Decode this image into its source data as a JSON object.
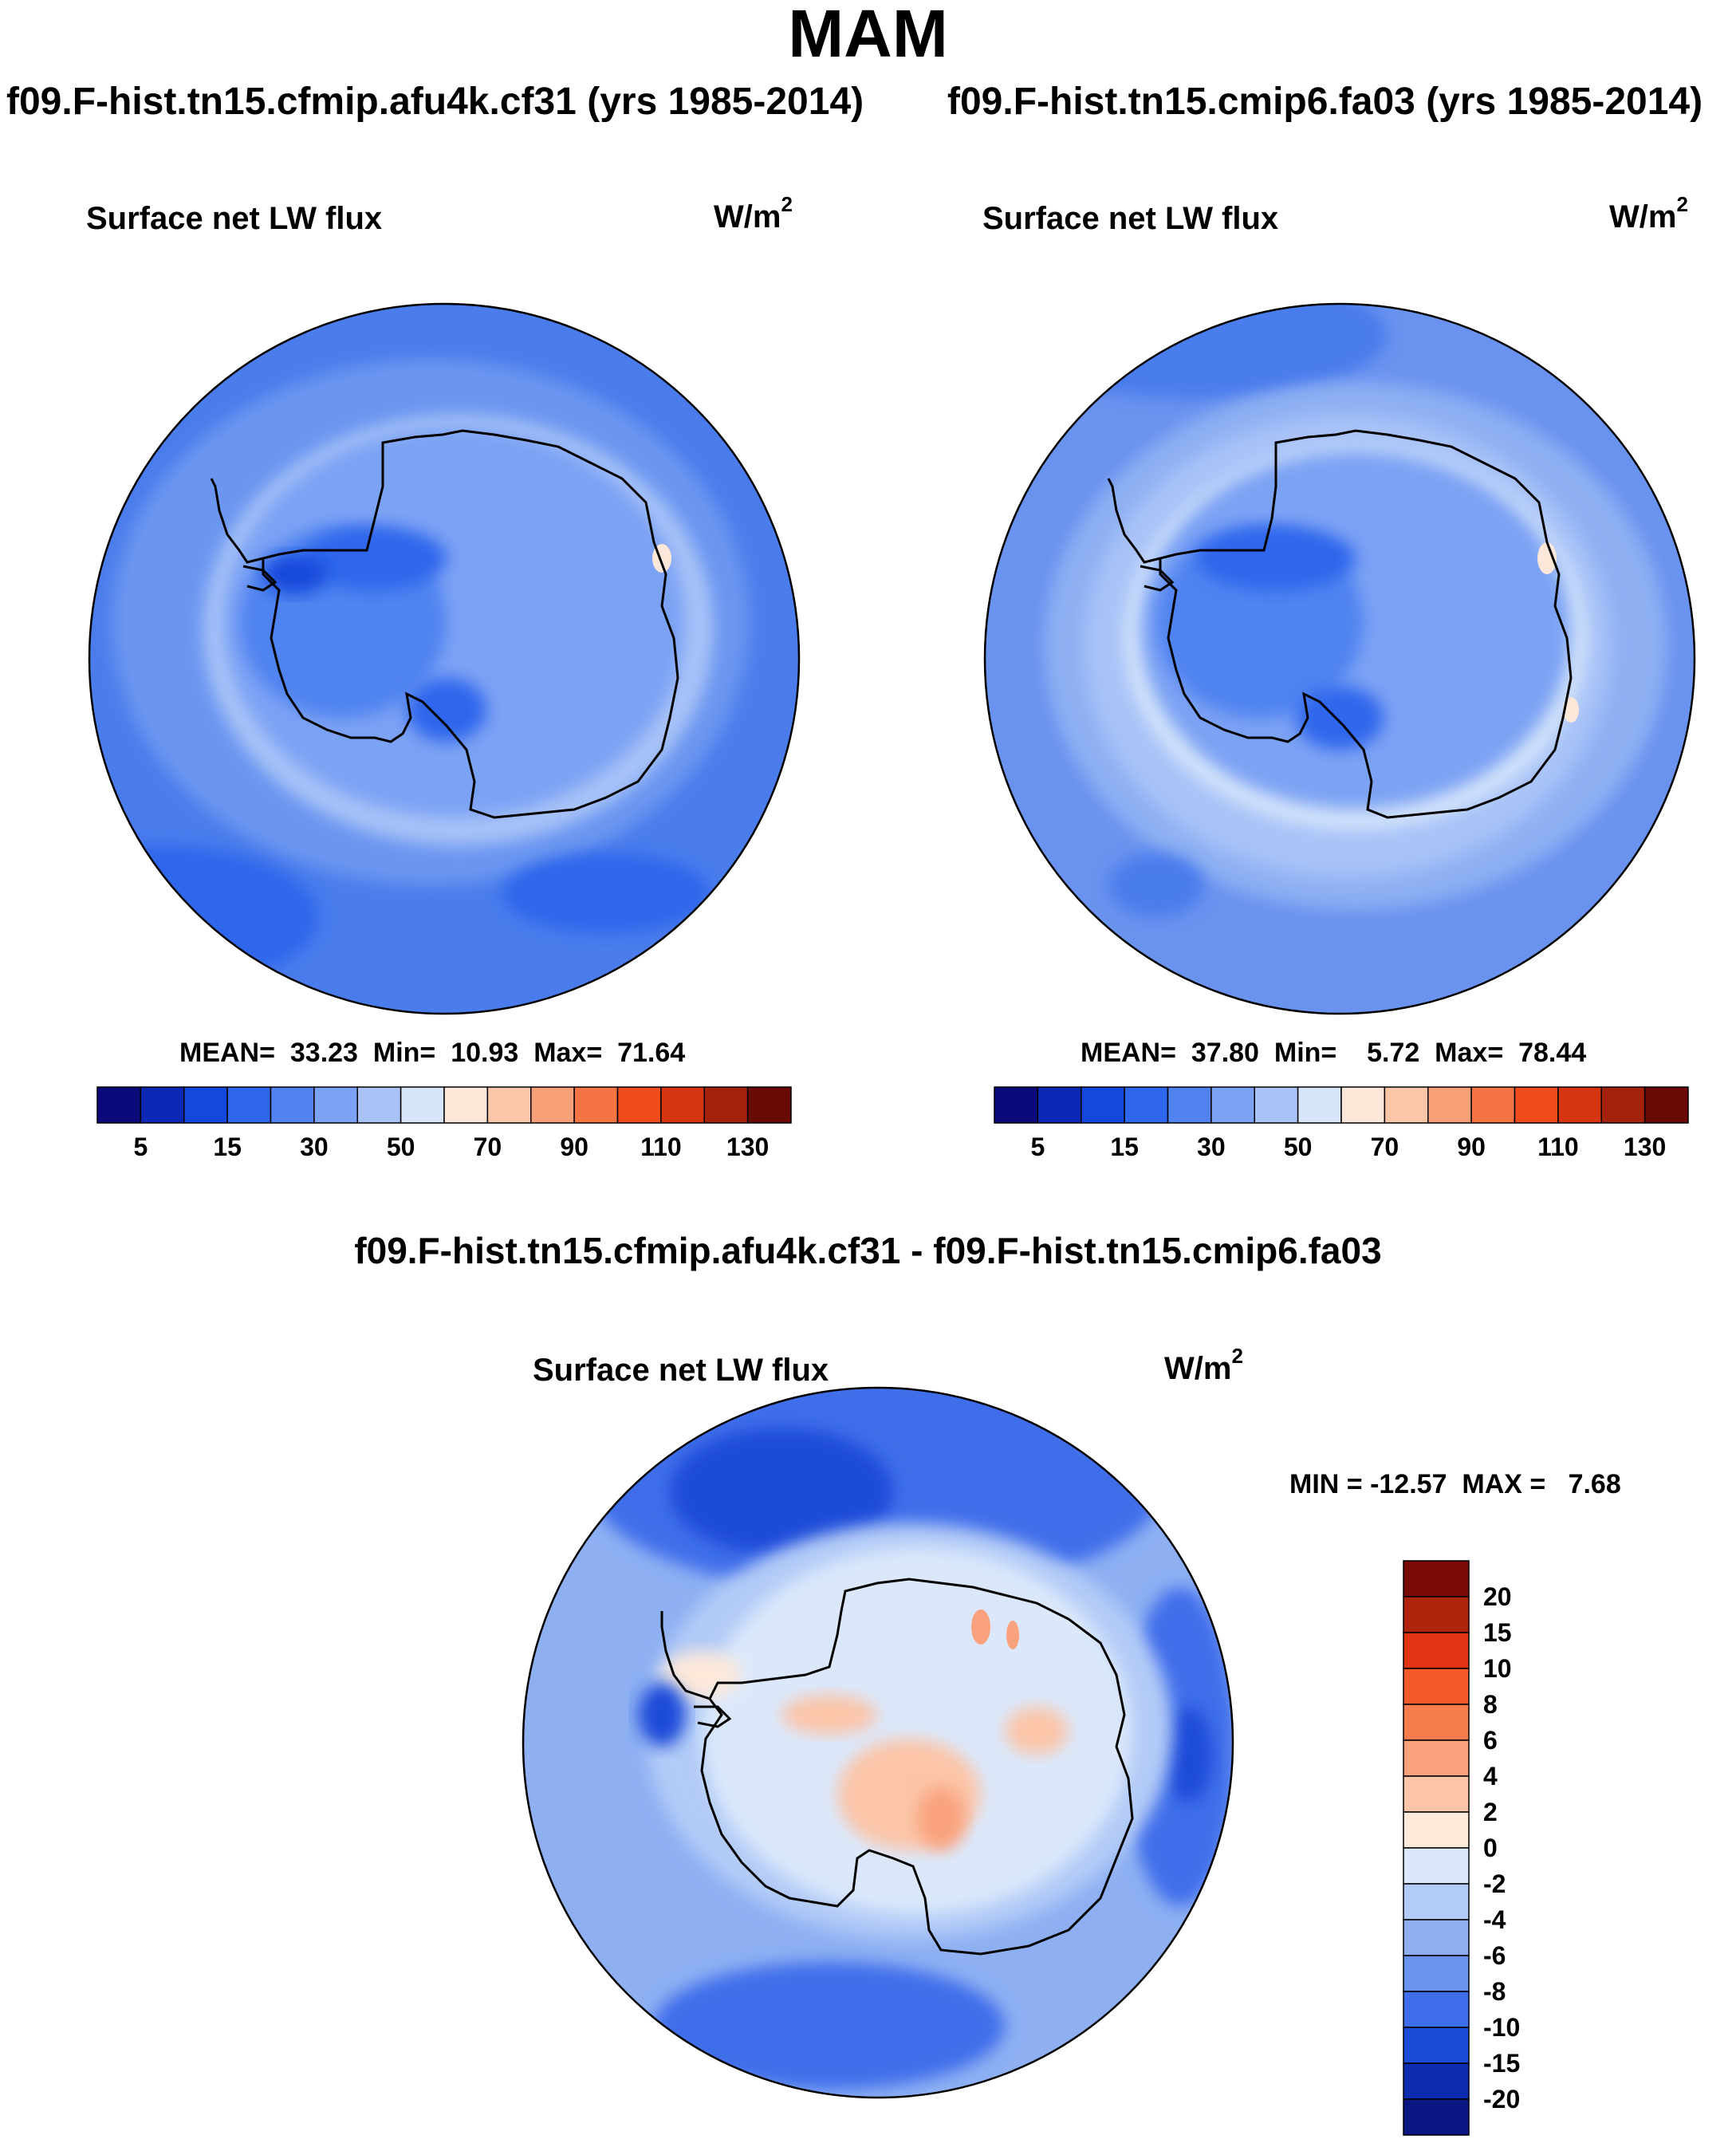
{
  "figure": {
    "season": "MAM",
    "diff_title": "f09.F-hist.tn15.cfmip.afu4k.cf31 - f09.F-hist.tn15.cmip6.fa03"
  },
  "panels": [
    {
      "run_title": "f09.F-hist.tn15.cfmip.afu4k.cf31 (yrs 1985-2014)",
      "variable": "Surface net LW flux",
      "units_base": "W/m",
      "units_exp": "2",
      "stats": {
        "mean_label": "MEAN=",
        "mean": "33.23",
        "min_label": "Min=",
        "min": "10.93",
        "max_label": "Max=",
        "max": "71.64"
      }
    },
    {
      "run_title": "f09.F-hist.tn15.cmip6.fa03 (yrs 1985-2014)",
      "variable": "Surface net LW flux",
      "units_base": "W/m",
      "units_exp": "2",
      "stats": {
        "mean_label": "MEAN=",
        "mean": "37.80",
        "min_label": "Min=",
        "min": "5.72",
        "max_label": "Max=",
        "max": "78.44"
      }
    },
    {
      "variable": "Surface net LW flux",
      "units_base": "W/m",
      "units_exp": "2",
      "stats_text": "MIN = -12.57  MAX =   7.68"
    }
  ],
  "colorbar_main": {
    "labels": [
      "5",
      "15",
      "30",
      "50",
      "70",
      "90",
      "110",
      "130"
    ],
    "colors": [
      "#0a0a7a",
      "#0c28b4",
      "#1448dc",
      "#2e66ec",
      "#5083f0",
      "#7ca2f4",
      "#a9c3f8",
      "#d6e5fa",
      "#fde7d8",
      "#fbc6a8",
      "#f8a077",
      "#f57443",
      "#ef4b1c",
      "#d63510",
      "#a4220c",
      "#6a0a05"
    ]
  },
  "colorbar_diff": {
    "labels": [
      "20",
      "15",
      "10",
      "8",
      "6",
      "4",
      "2",
      "0",
      "-2",
      "-4",
      "-6",
      "-8",
      "-10",
      "-15",
      "-20"
    ],
    "colors": [
      "#7a0a05",
      "#b0230d",
      "#e03412",
      "#f45a2a",
      "#f77c4d",
      "#f9a27d",
      "#fcc5a8",
      "#fde9da",
      "#dbe8fb",
      "#b3cbf7",
      "#8eb0f3",
      "#6a93ef",
      "#3f6eea",
      "#1a4bd9",
      "#0b2cae",
      "#0a1681"
    ]
  },
  "chart_data": {
    "type": "heatmap",
    "projection": "south polar stereographic",
    "maps": [
      {
        "title": "f09.F-hist.tn15.cfmip.afu4k.cf31 (yrs 1985-2014)",
        "variable": "Surface net LW flux",
        "units": "W/m2",
        "mean": 33.23,
        "min": 10.93,
        "max": 71.64,
        "contour_levels": [
          5,
          10,
          15,
          20,
          30,
          40,
          50,
          60,
          70,
          80,
          90,
          100,
          110,
          120,
          130
        ]
      },
      {
        "title": "f09.F-hist.tn15.cmip6.fa03 (yrs 1985-2014)",
        "variable": "Surface net LW flux",
        "units": "W/m2",
        "mean": 37.8,
        "min": 5.72,
        "max": 78.44,
        "contour_levels": [
          5,
          10,
          15,
          20,
          30,
          40,
          50,
          60,
          70,
          80,
          90,
          100,
          110,
          120,
          130
        ]
      },
      {
        "title": "f09.F-hist.tn15.cfmip.afu4k.cf31 - f09.F-hist.tn15.cmip6.fa03",
        "variable": "Surface net LW flux",
        "units": "W/m2",
        "min": -12.57,
        "max": 7.68,
        "contour_levels": [
          -20,
          -15,
          -10,
          -8,
          -6,
          -4,
          -2,
          0,
          2,
          4,
          6,
          8,
          10,
          15,
          20
        ]
      }
    ]
  }
}
